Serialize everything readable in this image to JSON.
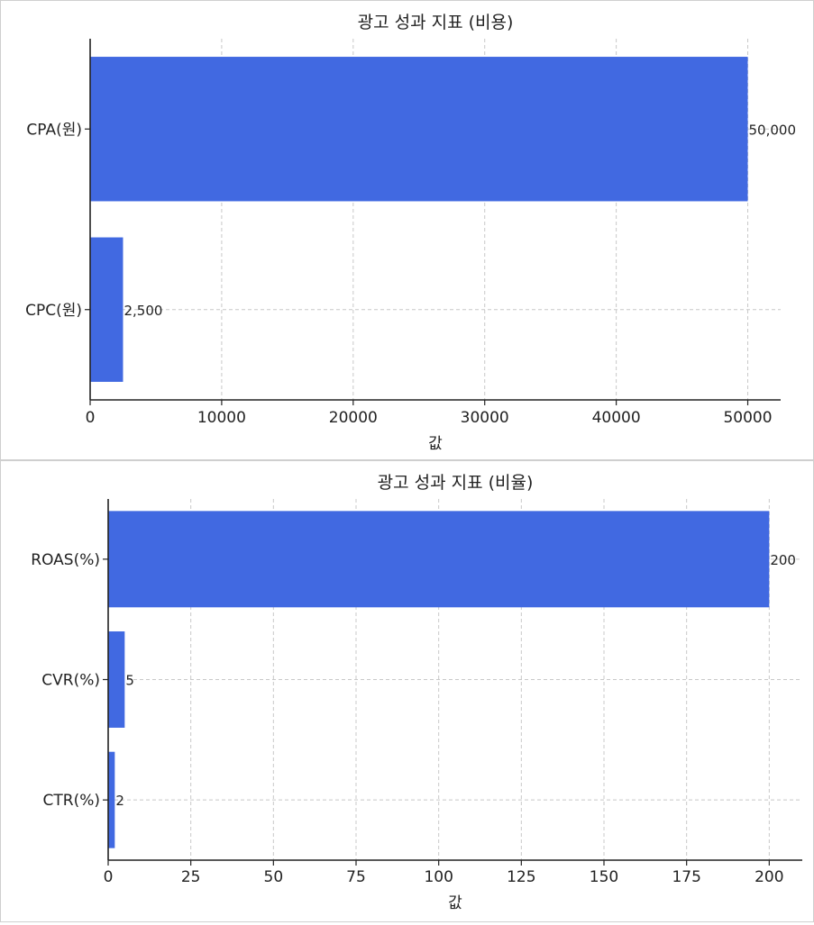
{
  "chart_data": [
    {
      "type": "bar",
      "orientation": "horizontal",
      "title": "광고 성과 지표 (비용)",
      "xlabel": "값",
      "ylabel": "",
      "categories": [
        "CPA(원)",
        "CPC(원)"
      ],
      "values": [
        50000,
        2500
      ],
      "value_labels": [
        "50,000",
        "2,500"
      ],
      "xlim": [
        0,
        52500
      ],
      "xticks": [
        0,
        10000,
        20000,
        30000,
        40000,
        50000
      ],
      "xtick_labels": [
        "0",
        "10000",
        "20000",
        "30000",
        "40000",
        "50000"
      ],
      "grid": true,
      "color": "#4169e1"
    },
    {
      "type": "bar",
      "orientation": "horizontal",
      "title": "광고 성과 지표 (비율)",
      "xlabel": "값",
      "ylabel": "",
      "categories": [
        "ROAS(%)",
        "CVR(%)",
        "CTR(%)"
      ],
      "values": [
        200,
        5,
        2
      ],
      "value_labels": [
        "200",
        "5",
        "2"
      ],
      "xlim": [
        0,
        210
      ],
      "xticks": [
        0,
        25,
        50,
        75,
        100,
        125,
        150,
        175,
        200
      ],
      "xtick_labels": [
        "0",
        "25",
        "50",
        "75",
        "100",
        "125",
        "150",
        "175",
        "200"
      ],
      "grid": true,
      "color": "#4169e1"
    }
  ]
}
